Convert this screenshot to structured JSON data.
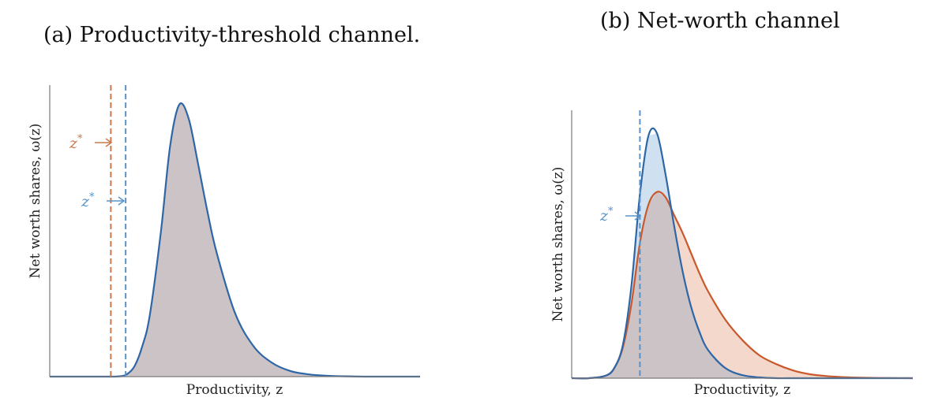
{
  "colors": {
    "blue": "#2E66A6",
    "blue_dash": "#5A93C9",
    "orange": "#C9582C",
    "orange_dash": "#C97A4C",
    "gray_fill": "#CBC3C6",
    "blue_fill": "#CFE1F1",
    "orange_fill": "#F3D8CB"
  },
  "chart_data": [
    {
      "type": "area",
      "title": "(a) Productivity-threshold channel.",
      "xlabel": "Productivity, z",
      "ylabel": "Net worth shares, ω(z)",
      "xlim": [
        0,
        10
      ],
      "ylim": [
        0,
        1.05
      ],
      "grid": false,
      "legend": "none",
      "x": [
        0.0,
        0.5,
        1.0,
        1.5,
        1.9,
        2.1,
        2.3,
        2.5,
        2.7,
        3.0,
        3.25,
        3.5,
        3.75,
        4.0,
        4.25,
        4.5,
        5.0,
        5.5,
        6.0,
        6.5,
        7.0,
        7.5,
        8.0,
        8.5,
        9.0,
        10.0
      ],
      "series": [
        {
          "color_key": "blue",
          "values": [
            0.0,
            0.0,
            0.0,
            0.0,
            0.001,
            0.01,
            0.04,
            0.11,
            0.22,
            0.52,
            0.83,
            0.98,
            0.93,
            0.77,
            0.6,
            0.45,
            0.23,
            0.11,
            0.05,
            0.02,
            0.008,
            0.003,
            0.001,
            0.0,
            0.0,
            0.0
          ]
        }
      ],
      "thresholds": [
        {
          "label": "z*",
          "x": 1.65,
          "color_key": "orange_dash"
        },
        {
          "label": "z*",
          "x": 2.05,
          "color_key": "blue_dash"
        }
      ]
    },
    {
      "type": "area",
      "title": "(b) Net-worth channel",
      "xlabel": "Productivity, z",
      "ylabel": "Net worth shares, ω(z)",
      "xlim": [
        0,
        10
      ],
      "ylim": [
        0,
        1.05
      ],
      "grid": false,
      "legend": "none",
      "x": [
        0.0,
        0.5,
        1.0,
        1.25,
        1.5,
        1.75,
        2.0,
        2.25,
        2.5,
        2.75,
        3.0,
        3.25,
        3.5,
        3.75,
        4.0,
        4.5,
        5.0,
        5.5,
        6.0,
        6.5,
        7.0,
        7.5,
        8.0,
        8.5,
        9.0,
        10.0
      ],
      "series": [
        {
          "color_key": "blue",
          "values": [
            0.0,
            0.0,
            0.01,
            0.04,
            0.13,
            0.36,
            0.72,
            0.95,
            0.96,
            0.8,
            0.6,
            0.42,
            0.28,
            0.18,
            0.11,
            0.04,
            0.012,
            0.003,
            0.0,
            0.0,
            0.0,
            0.0,
            0.0,
            0.0,
            0.0,
            0.0
          ]
        },
        {
          "color_key": "orange",
          "values": [
            0.0,
            0.0,
            0.01,
            0.04,
            0.12,
            0.29,
            0.53,
            0.68,
            0.73,
            0.71,
            0.64,
            0.57,
            0.49,
            0.41,
            0.34,
            0.23,
            0.15,
            0.09,
            0.055,
            0.03,
            0.015,
            0.008,
            0.004,
            0.002,
            0.001,
            0.0
          ]
        }
      ],
      "thresholds": [
        {
          "label": "z*",
          "x": 2.0,
          "color_key": "blue_dash"
        }
      ]
    }
  ]
}
